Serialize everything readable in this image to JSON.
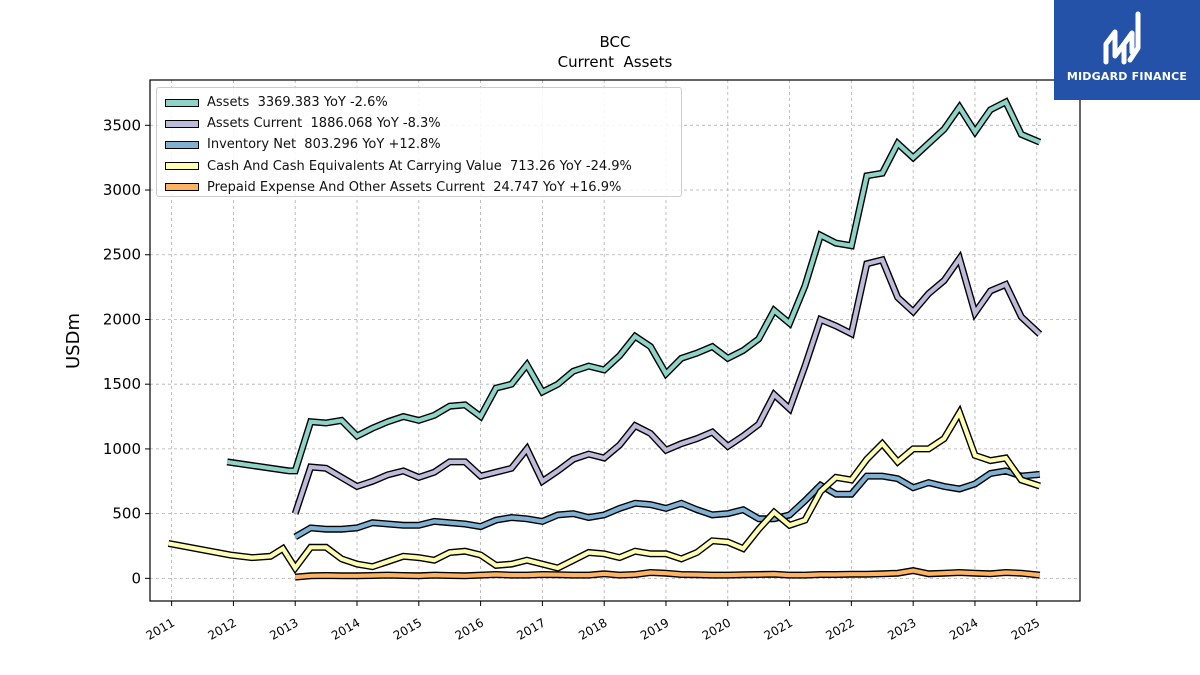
{
  "logo": {
    "text": "MIDGARD FINANCE",
    "icon": "midgard-logo-icon",
    "background": "#2452a8"
  },
  "chart_data": {
    "type": "line",
    "title": "BCC",
    "subtitle": "Current  Assets",
    "ylabel": "USDm",
    "xlabel": "",
    "xlim": [
      2010.65,
      2025.7
    ],
    "ylim": [
      -175,
      3850
    ],
    "yticks": [
      0,
      500,
      1000,
      1500,
      2000,
      2500,
      3000,
      3500
    ],
    "xticks": [
      "2011",
      "2012",
      "2013",
      "2014",
      "2015",
      "2016",
      "2017",
      "2018",
      "2019",
      "2020",
      "2021",
      "2022",
      "2023",
      "2024",
      "2025"
    ],
    "grid": true,
    "legend_position": "top-left",
    "series": [
      {
        "name": "Assets",
        "legend": "Assets  3369.383 YoY -2.6%",
        "color": "#8dd3c7",
        "x": [
          2011.9,
          2012.9,
          2013.0,
          2013.25,
          2013.5,
          2013.75,
          2014.0,
          2014.25,
          2014.5,
          2014.75,
          2015.0,
          2015.25,
          2015.5,
          2015.75,
          2016.0,
          2016.25,
          2016.5,
          2016.75,
          2017.0,
          2017.25,
          2017.5,
          2017.75,
          2018.0,
          2018.25,
          2018.5,
          2018.75,
          2019.0,
          2019.25,
          2019.5,
          2019.75,
          2020.0,
          2020.25,
          2020.5,
          2020.75,
          2021.0,
          2021.25,
          2021.5,
          2021.75,
          2022.0,
          2022.25,
          2022.5,
          2022.75,
          2023.0,
          2023.25,
          2023.5,
          2023.75,
          2024.0,
          2024.25,
          2024.5,
          2024.75,
          2025.05
        ],
        "y": [
          900,
          830,
          830,
          1210,
          1200,
          1220,
          1100,
          1160,
          1210,
          1250,
          1220,
          1260,
          1330,
          1340,
          1250,
          1470,
          1500,
          1650,
          1440,
          1500,
          1600,
          1640,
          1610,
          1720,
          1870,
          1790,
          1580,
          1700,
          1740,
          1790,
          1700,
          1760,
          1850,
          2070,
          1970,
          2260,
          2650,
          2590,
          2570,
          3110,
          3130,
          3360,
          3250,
          3360,
          3470,
          3640,
          3450,
          3620,
          3680,
          3430,
          3369.383
        ]
      },
      {
        "name": "Assets Current",
        "legend": "Assets Current  1886.068 YoY -8.3%",
        "color": "#bebada",
        "x": [
          2013.0,
          2013.25,
          2013.5,
          2013.75,
          2014.0,
          2014.25,
          2014.5,
          2014.75,
          2015.0,
          2015.25,
          2015.5,
          2015.75,
          2016.0,
          2016.25,
          2016.5,
          2016.75,
          2017.0,
          2017.25,
          2017.5,
          2017.75,
          2018.0,
          2018.25,
          2018.5,
          2018.75,
          2019.0,
          2019.25,
          2019.5,
          2019.75,
          2020.0,
          2020.25,
          2020.5,
          2020.75,
          2021.0,
          2021.25,
          2021.5,
          2021.75,
          2022.0,
          2022.25,
          2022.5,
          2022.75,
          2023.0,
          2023.25,
          2023.5,
          2023.75,
          2024.0,
          2024.25,
          2024.5,
          2024.75,
          2025.05
        ],
        "y": [
          500,
          860,
          850,
          780,
          710,
          750,
          800,
          830,
          780,
          820,
          900,
          900,
          790,
          820,
          850,
          1000,
          750,
          830,
          920,
          960,
          930,
          1030,
          1180,
          1120,
          990,
          1040,
          1080,
          1130,
          1020,
          1100,
          1190,
          1420,
          1310,
          1640,
          2000,
          1950,
          1890,
          2430,
          2460,
          2170,
          2060,
          2200,
          2300,
          2470,
          2050,
          2220,
          2270,
          2020,
          1886.068
        ]
      },
      {
        "name": "Inventory Net",
        "legend": "Inventory Net  803.296 YoY +12.8%",
        "color": "#80b1d3",
        "x": [
          2013.0,
          2013.25,
          2013.5,
          2013.75,
          2014.0,
          2014.25,
          2014.5,
          2014.75,
          2015.0,
          2015.25,
          2015.5,
          2015.75,
          2016.0,
          2016.25,
          2016.5,
          2016.75,
          2017.0,
          2017.25,
          2017.5,
          2017.75,
          2018.0,
          2018.25,
          2018.5,
          2018.75,
          2019.0,
          2019.25,
          2019.5,
          2019.75,
          2020.0,
          2020.25,
          2020.5,
          2020.75,
          2021.0,
          2021.25,
          2021.5,
          2021.75,
          2022.0,
          2022.25,
          2022.5,
          2022.75,
          2023.0,
          2023.25,
          2023.5,
          2023.75,
          2024.0,
          2024.25,
          2024.5,
          2024.75,
          2025.05
        ],
        "y": [
          320,
          390,
          380,
          380,
          390,
          430,
          420,
          410,
          410,
          440,
          430,
          420,
          400,
          450,
          470,
          460,
          440,
          490,
          500,
          470,
          490,
          540,
          580,
          570,
          540,
          580,
          530,
          490,
          500,
          530,
          460,
          460,
          490,
          600,
          720,
          650,
          650,
          790,
          790,
          770,
          700,
          740,
          710,
          690,
          730,
          810,
          830,
          790,
          803.296
        ]
      },
      {
        "name": "Cash And Cash Equivalents At Carrying Value",
        "legend": "Cash And Cash Equivalents At Carrying Value  713.26 YoY -24.9%",
        "color": "#ffffb3",
        "x": [
          2010.95,
          2011.95,
          2012.3,
          2012.6,
          2012.8,
          2013.0,
          2013.25,
          2013.5,
          2013.75,
          2014.0,
          2014.25,
          2014.5,
          2014.75,
          2015.0,
          2015.25,
          2015.5,
          2015.75,
          2016.0,
          2016.25,
          2016.5,
          2016.75,
          2017.0,
          2017.25,
          2017.5,
          2017.75,
          2018.0,
          2018.25,
          2018.5,
          2018.75,
          2019.0,
          2019.25,
          2019.5,
          2019.75,
          2020.0,
          2020.25,
          2020.5,
          2020.75,
          2021.0,
          2021.25,
          2021.5,
          2021.75,
          2022.0,
          2022.25,
          2022.5,
          2022.75,
          2023.0,
          2023.25,
          2023.5,
          2023.75,
          2024.0,
          2024.25,
          2024.5,
          2024.75,
          2025.05
        ],
        "y": [
          270,
          180,
          160,
          170,
          230,
          80,
          240,
          240,
          150,
          110,
          90,
          130,
          170,
          160,
          140,
          200,
          210,
          180,
          100,
          110,
          140,
          110,
          80,
          140,
          200,
          190,
          160,
          210,
          190,
          190,
          150,
          200,
          290,
          280,
          230,
          380,
          510,
          410,
          450,
          670,
          780,
          760,
          920,
          1040,
          900,
          1000,
          1000,
          1080,
          1280,
          950,
          910,
          930,
          760,
          713.26
        ]
      },
      {
        "name": "Prepaid Expense And Other Assets Current",
        "legend": "Prepaid Expense And Other Assets Current  24.747 YoY +16.9%",
        "color": "#fdb462",
        "x": [
          2013.0,
          2013.25,
          2013.5,
          2013.75,
          2014.0,
          2014.25,
          2014.5,
          2014.75,
          2015.0,
          2015.25,
          2015.5,
          2015.75,
          2016.0,
          2016.25,
          2016.5,
          2016.75,
          2017.0,
          2017.25,
          2017.5,
          2017.75,
          2018.0,
          2018.25,
          2018.5,
          2018.75,
          2019.0,
          2019.25,
          2019.5,
          2019.75,
          2020.0,
          2020.25,
          2020.5,
          2020.75,
          2021.0,
          2021.25,
          2021.5,
          2021.75,
          2022.0,
          2022.25,
          2022.5,
          2022.75,
          2023.0,
          2023.25,
          2023.5,
          2023.75,
          2024.0,
          2024.25,
          2024.5,
          2024.75,
          2025.05
        ],
        "y": [
          10,
          20,
          22,
          20,
          20,
          22,
          25,
          22,
          20,
          25,
          22,
          20,
          25,
          30,
          25,
          25,
          30,
          28,
          25,
          25,
          35,
          25,
          30,
          45,
          40,
          30,
          28,
          25,
          25,
          28,
          30,
          32,
          25,
          25,
          30,
          30,
          32,
          32,
          35,
          40,
          60,
          35,
          40,
          45,
          40,
          35,
          45,
          40,
          24.747
        ]
      }
    ]
  }
}
